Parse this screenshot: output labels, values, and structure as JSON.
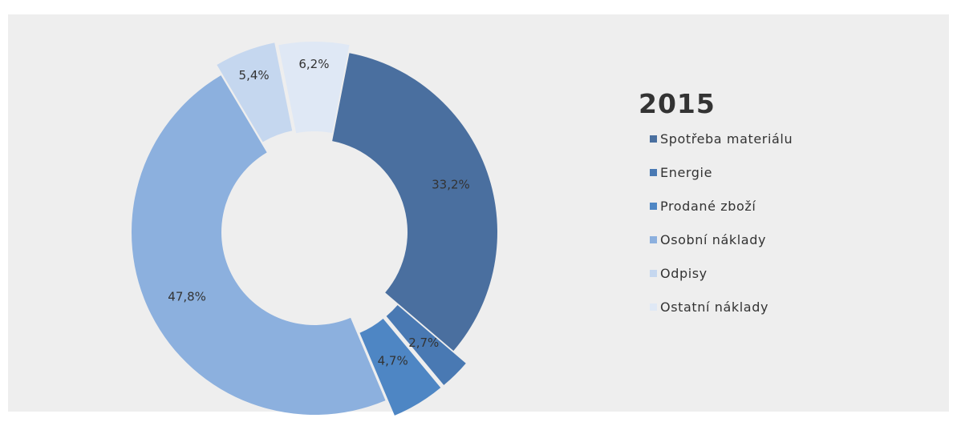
{
  "chart_data": {
    "type": "pie",
    "title": "2015",
    "legend_position": "right",
    "categories": [
      "Spotřeba materiálu",
      "Energie",
      "Prodané zboží",
      "Osobní náklady",
      "Odpisy",
      "Ostatní náklady"
    ],
    "values": [
      33.2,
      2.7,
      4.7,
      47.8,
      5.4,
      6.2
    ],
    "data_labels": [
      "33,2%",
      "2,7%",
      "4,7%",
      "47,8%",
      "5,4%",
      "6,2%"
    ],
    "colors": [
      "#4a6f9f",
      "#4979b3",
      "#4e86c4",
      "#8cb0de",
      "#c5d7ef",
      "#dfe8f5"
    ]
  }
}
